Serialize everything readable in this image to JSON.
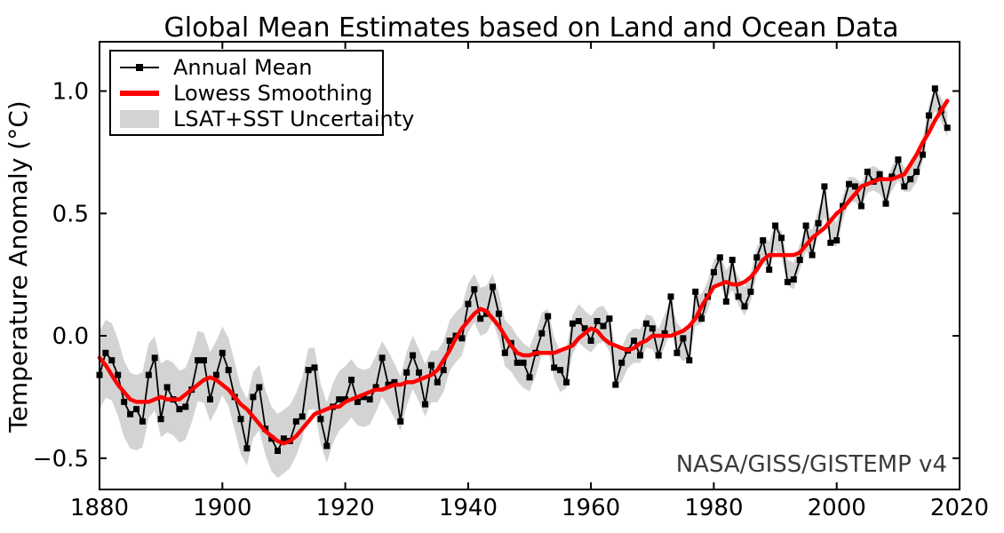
{
  "figure": {
    "title": "Global Mean Estimates based on Land and Ocean Data",
    "y_axis_label": "Temperature Anomaly (°C)",
    "annotation": "NASA/GISS/GISTEMP v4",
    "background_color": "#ffffff"
  },
  "legend": {
    "position": "upper left",
    "items": [
      {
        "label": "Annual Mean",
        "sample": "black-line-with-square-marker",
        "color": "#000000"
      },
      {
        "label": "Lowess Smoothing",
        "sample": "red-line",
        "color": "#ff0000"
      },
      {
        "label": "LSAT+SST Uncertainty",
        "sample": "gray-patch",
        "color": "#d3d3d3"
      }
    ]
  },
  "chart_data": {
    "type": "line",
    "title": "Global Mean Estimates based on Land and Ocean Data",
    "xlabel": "",
    "ylabel": "Temperature Anomaly (°C)",
    "xlim": [
      1880,
      2020
    ],
    "ylim": [
      -0.63,
      1.2
    ],
    "xticks": [
      1880,
      1900,
      1920,
      1940,
      1960,
      1980,
      2000,
      2020
    ],
    "yticks": [
      {
        "value": -0.5,
        "label": "−0.5"
      },
      {
        "value": 0.0,
        "label": "0.0"
      },
      {
        "value": 0.5,
        "label": "0.5"
      },
      {
        "value": 1.0,
        "label": "1.0"
      }
    ],
    "grid": false,
    "source_label": "NASA/GISS/GISTEMP v4",
    "x": {
      "start": 1880,
      "end": 2018,
      "step": 1
    },
    "series": [
      {
        "name": "Annual Mean",
        "type": "line+marker",
        "marker": "square",
        "color": "#000000",
        "values": [
          -0.16,
          -0.07,
          -0.1,
          -0.16,
          -0.27,
          -0.32,
          -0.3,
          -0.35,
          -0.16,
          -0.09,
          -0.34,
          -0.21,
          -0.26,
          -0.3,
          -0.29,
          -0.22,
          -0.1,
          -0.1,
          -0.26,
          -0.16,
          -0.07,
          -0.14,
          -0.25,
          -0.34,
          -0.46,
          -0.25,
          -0.21,
          -0.38,
          -0.42,
          -0.47,
          -0.42,
          -0.43,
          -0.35,
          -0.33,
          -0.14,
          -0.13,
          -0.34,
          -0.45,
          -0.29,
          -0.26,
          -0.26,
          -0.18,
          -0.27,
          -0.25,
          -0.26,
          -0.21,
          -0.09,
          -0.2,
          -0.19,
          -0.35,
          -0.15,
          -0.08,
          -0.15,
          -0.28,
          -0.12,
          -0.19,
          -0.14,
          -0.02,
          0.0,
          -0.01,
          0.13,
          0.19,
          0.07,
          0.09,
          0.2,
          0.09,
          -0.07,
          -0.03,
          -0.11,
          -0.11,
          -0.17,
          -0.07,
          0.01,
          0.08,
          -0.13,
          -0.14,
          -0.19,
          0.05,
          0.06,
          0.03,
          -0.02,
          0.06,
          0.04,
          0.07,
          -0.2,
          -0.11,
          -0.06,
          -0.02,
          -0.08,
          0.05,
          0.03,
          -0.08,
          0.01,
          0.16,
          -0.07,
          -0.01,
          -0.1,
          0.18,
          0.07,
          0.16,
          0.26,
          0.32,
          0.14,
          0.31,
          0.16,
          0.12,
          0.18,
          0.32,
          0.39,
          0.27,
          0.45,
          0.4,
          0.22,
          0.23,
          0.31,
          0.45,
          0.33,
          0.46,
          0.61,
          0.38,
          0.39,
          0.53,
          0.62,
          0.61,
          0.53,
          0.67,
          0.63,
          0.66,
          0.54,
          0.65,
          0.72,
          0.61,
          0.64,
          0.67,
          0.74,
          0.9,
          1.01,
          0.92,
          0.85
        ]
      },
      {
        "name": "Lowess Smoothing",
        "type": "line",
        "color": "#ff0000",
        "values": [
          -0.09,
          -0.12,
          -0.16,
          -0.2,
          -0.23,
          -0.26,
          -0.27,
          -0.27,
          -0.27,
          -0.26,
          -0.25,
          -0.26,
          -0.26,
          -0.26,
          -0.24,
          -0.22,
          -0.2,
          -0.18,
          -0.17,
          -0.18,
          -0.2,
          -0.22,
          -0.25,
          -0.28,
          -0.3,
          -0.33,
          -0.36,
          -0.39,
          -0.41,
          -0.43,
          -0.44,
          -0.43,
          -0.41,
          -0.38,
          -0.35,
          -0.32,
          -0.31,
          -0.3,
          -0.29,
          -0.29,
          -0.27,
          -0.26,
          -0.25,
          -0.24,
          -0.23,
          -0.22,
          -0.22,
          -0.21,
          -0.2,
          -0.2,
          -0.19,
          -0.19,
          -0.18,
          -0.17,
          -0.16,
          -0.14,
          -0.1,
          -0.06,
          -0.01,
          0.03,
          0.06,
          0.09,
          0.11,
          0.1,
          0.07,
          0.04,
          0.0,
          -0.04,
          -0.07,
          -0.08,
          -0.08,
          -0.07,
          -0.07,
          -0.07,
          -0.07,
          -0.06,
          -0.05,
          -0.04,
          -0.01,
          0.01,
          0.03,
          0.02,
          -0.01,
          -0.03,
          -0.04,
          -0.05,
          -0.06,
          -0.05,
          -0.03,
          -0.02,
          0.0,
          0.0,
          0.0,
          0.0,
          0.01,
          0.02,
          0.04,
          0.07,
          0.12,
          0.16,
          0.2,
          0.21,
          0.22,
          0.21,
          0.21,
          0.22,
          0.24,
          0.27,
          0.31,
          0.33,
          0.33,
          0.33,
          0.33,
          0.33,
          0.34,
          0.37,
          0.4,
          0.42,
          0.44,
          0.47,
          0.5,
          0.52,
          0.55,
          0.58,
          0.61,
          0.62,
          0.63,
          0.64,
          0.64,
          0.64,
          0.65,
          0.66,
          0.7,
          0.74,
          0.79,
          0.83,
          0.88,
          0.92,
          0.96
        ]
      },
      {
        "name": "LSAT+SST Uncertainty",
        "type": "band",
        "color": "#d3d3d3",
        "center": "annual-mean",
        "halfwidth_by_year": [
          [
            1880,
            0.16
          ],
          [
            1900,
            0.14
          ],
          [
            1920,
            0.12
          ],
          [
            1940,
            0.1
          ],
          [
            1950,
            0.09
          ],
          [
            1960,
            0.075
          ],
          [
            1980,
            0.06
          ],
          [
            2000,
            0.05
          ],
          [
            2018,
            0.05
          ]
        ]
      }
    ]
  }
}
